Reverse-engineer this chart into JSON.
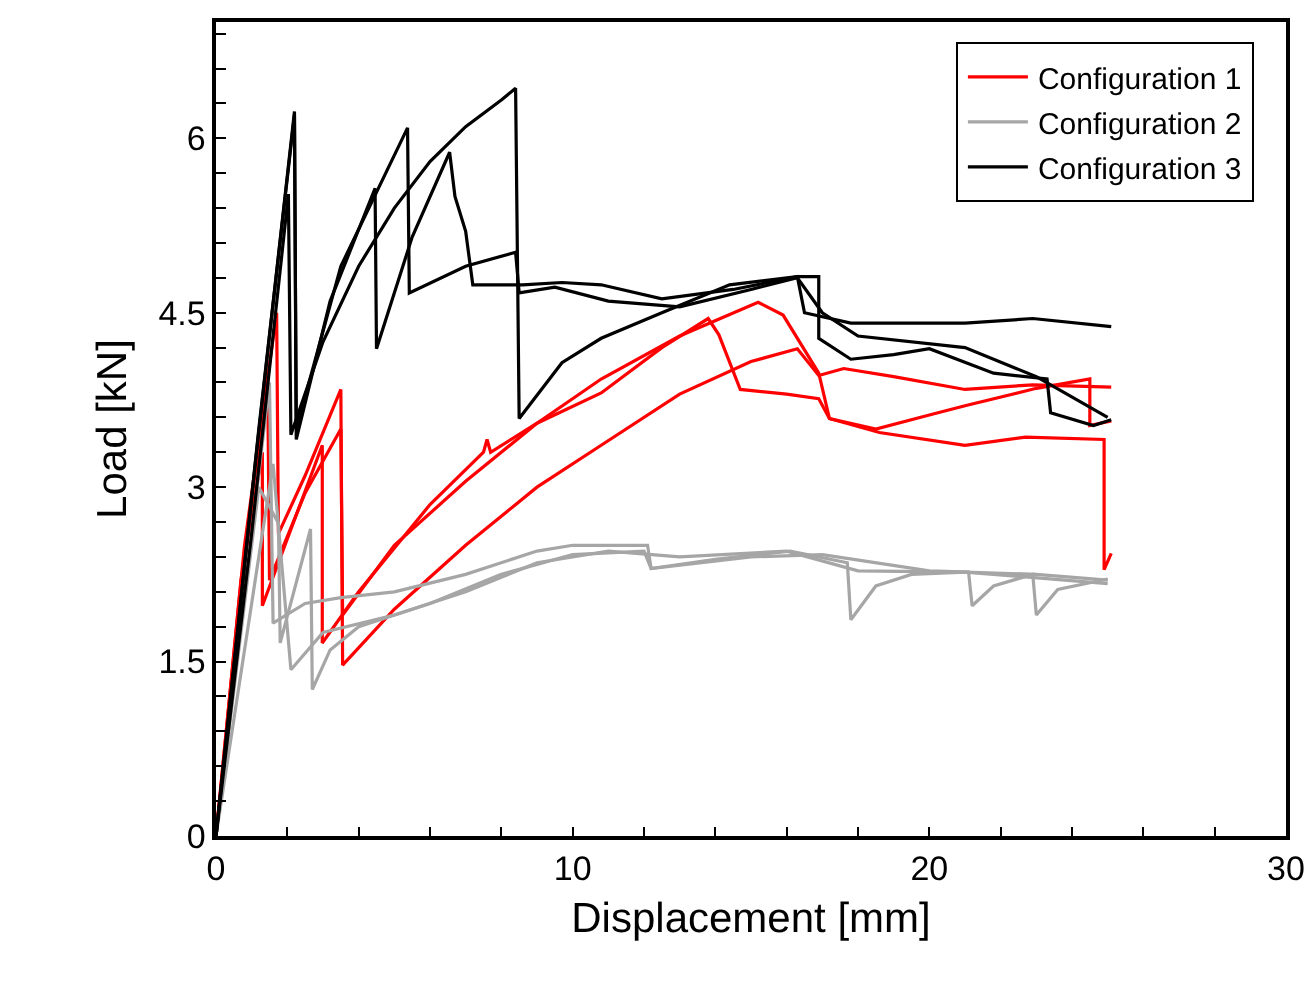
{
  "chart_data": {
    "type": "line",
    "xlabel": "Displacement [mm]",
    "ylabel": "Load [kN]",
    "xlim": [
      0,
      30
    ],
    "ylim": [
      0,
      7
    ],
    "xticks": [
      0,
      {
        "value": 2,
        "label": null
      },
      {
        "value": 4,
        "label": null
      },
      {
        "value": 6,
        "label": null
      },
      {
        "value": 8,
        "label": null
      },
      10,
      {
        "value": 12,
        "label": null
      },
      {
        "value": 14,
        "label": null
      },
      {
        "value": 16,
        "label": null
      },
      {
        "value": 18,
        "label": null
      },
      20,
      {
        "value": 22,
        "label": null
      },
      {
        "value": 24,
        "label": null
      },
      {
        "value": 26,
        "label": null
      },
      {
        "value": 28,
        "label": null
      },
      30
    ],
    "yticks": [
      0,
      {
        "value": 0.3,
        "label": null
      },
      {
        "value": 0.6,
        "label": null
      },
      {
        "value": 0.9,
        "label": null
      },
      {
        "value": 1.2,
        "label": null
      },
      1.5,
      {
        "value": 1.8,
        "label": null
      },
      {
        "value": 2.1,
        "label": null
      },
      {
        "value": 2.4,
        "label": null
      },
      {
        "value": 2.7,
        "label": null
      },
      3,
      {
        "value": 3.3,
        "label": null
      },
      {
        "value": 3.6,
        "label": null
      },
      {
        "value": 3.9,
        "label": null
      },
      {
        "value": 4.2,
        "label": null
      },
      4.5,
      {
        "value": 4.8,
        "label": null
      },
      {
        "value": 5.1,
        "label": null
      },
      {
        "value": 5.4,
        "label": null
      },
      {
        "value": 5.7,
        "label": null
      },
      6,
      {
        "value": 6.3,
        "label": null
      },
      {
        "value": 6.6,
        "label": null
      },
      {
        "value": 6.9,
        "label": null
      }
    ],
    "grid": false,
    "legend": "top right",
    "marker": "none",
    "line_style": "solid",
    "series": [
      {
        "name": "Configuration 1",
        "color": "#ff0000",
        "x": [
          0,
          0.8,
          1.7,
          1.75,
          2.5,
          3.5,
          3.55,
          5,
          7,
          9,
          10.8,
          13,
          15,
          16.3,
          16.9,
          17.6,
          19,
          21,
          22.9,
          25.1
        ],
        "values": [
          0,
          2.5,
          4.5,
          2.6,
          3.1,
          3.84,
          1.47,
          1.95,
          2.5,
          3.0,
          3.36,
          3.8,
          4.08,
          4.19,
          3.96,
          4.02,
          3.95,
          3.84,
          3.88,
          3.86
        ]
      },
      {
        "color": "#ff0000",
        "x": [
          0,
          0.7,
          1.3,
          1.3,
          2.98,
          2.98,
          4,
          6,
          7.5,
          7.6,
          7.7,
          9,
          10.8,
          12.5,
          13.8,
          14.1,
          14.7,
          16,
          16.9,
          17.2,
          18.5,
          20,
          21,
          23,
          24.5,
          24.5,
          25.1
        ],
        "values": [
          0,
          2.2,
          3.3,
          1.98,
          3.36,
          1.66,
          2.1,
          2.85,
          3.3,
          3.41,
          3.3,
          3.55,
          3.81,
          4.2,
          4.45,
          4.31,
          3.84,
          3.8,
          3.76,
          3.59,
          3.5,
          3.62,
          3.7,
          3.85,
          3.93,
          3.53,
          3.57
        ]
      },
      {
        "color": "#ff0000",
        "x": [
          0,
          1,
          1.45,
          1.5,
          2.5,
          3.5,
          3.55,
          5,
          7,
          9,
          10.8,
          13,
          15.2,
          15.9,
          16.9,
          17.2,
          18.6,
          21,
          22.7,
          24.9,
          24.9,
          25.1
        ],
        "values": [
          0,
          2.9,
          3.9,
          2.2,
          2.95,
          3.5,
          1.9,
          2.5,
          3.05,
          3.55,
          3.93,
          4.3,
          4.59,
          4.48,
          3.98,
          3.59,
          3.47,
          3.36,
          3.43,
          3.41,
          2.29,
          2.43
        ]
      },
      {
        "name": "Configuration 2",
        "color": "#a6a6a6",
        "x": [
          0,
          1.5,
          1.6,
          2.5,
          3.5,
          5,
          7,
          9,
          10,
          12.1,
          12.2,
          14,
          16.1,
          17.7,
          17.8,
          18.5,
          19.5,
          21,
          23,
          25
        ],
        "values": [
          0,
          3.9,
          1.83,
          2.0,
          2.05,
          2.1,
          2.25,
          2.45,
          2.5,
          2.5,
          2.3,
          2.38,
          2.45,
          2.35,
          1.86,
          2.15,
          2.25,
          2.27,
          2.25,
          2.2
        ]
      },
      {
        "color": "#a6a6a6",
        "x": [
          0,
          1.2,
          1.75,
          1.8,
          2.65,
          2.7,
          3.2,
          4,
          6,
          8,
          10,
          12,
          12.2,
          15,
          17,
          20,
          21.1,
          21.2,
          21.8,
          22.9,
          23,
          23.6,
          25
        ],
        "values": [
          0,
          3.0,
          2.69,
          1.66,
          2.64,
          1.26,
          1.6,
          1.8,
          2.0,
          2.25,
          2.42,
          2.45,
          2.3,
          2.4,
          2.42,
          2.28,
          2.27,
          1.98,
          2.15,
          2.25,
          1.9,
          2.12,
          2.21
        ]
      },
      {
        "color": "#a6a6a6",
        "x": [
          0,
          1.6,
          2.1,
          3,
          5,
          7,
          9,
          11,
          13,
          16,
          18,
          21,
          25
        ],
        "values": [
          0,
          3.2,
          1.43,
          1.75,
          1.9,
          2.1,
          2.35,
          2.45,
          2.4,
          2.45,
          2.28,
          2.27,
          2.17
        ]
      },
      {
        "name": "Configuration 3",
        "color": "#000000",
        "x": [
          0,
          1,
          2.03,
          2.1,
          3,
          4,
          5,
          6,
          7,
          8,
          8.4,
          8.5,
          9.7,
          10.8,
          12.5,
          14.4,
          16.3,
          16.9,
          16.9,
          17.8,
          19,
          20,
          21.8,
          23.3,
          23.4,
          24.6,
          25.1
        ],
        "values": [
          0,
          2.6,
          5.52,
          3.45,
          4.25,
          4.9,
          5.4,
          5.8,
          6.1,
          6.33,
          6.43,
          3.59,
          4.07,
          4.28,
          4.5,
          4.74,
          4.81,
          4.81,
          4.28,
          4.1,
          4.14,
          4.19,
          3.98,
          3.93,
          3.64,
          3.53,
          3.58
        ]
      },
      {
        "color": "#000000",
        "x": [
          0,
          1.1,
          2.2,
          2.25,
          3.2,
          4.46,
          4.5,
          5.5,
          6.55,
          6.7,
          7,
          7.2,
          8.6,
          9.7,
          10.8,
          12.5,
          14.5,
          16.3,
          16.5,
          17.8,
          21,
          22.9,
          25.1
        ],
        "values": [
          0,
          3.2,
          6.23,
          3.41,
          4.6,
          5.57,
          4.19,
          5.15,
          5.88,
          5.5,
          5.2,
          4.74,
          4.74,
          4.76,
          4.74,
          4.62,
          4.7,
          4.81,
          4.5,
          4.41,
          4.41,
          4.45,
          4.38
        ]
      },
      {
        "color": "#000000",
        "x": [
          0,
          1.2,
          2.2,
          2.25,
          3.5,
          5.37,
          5.42,
          7,
          8.4,
          8.5,
          9.5,
          11,
          13,
          15,
          16.3,
          17,
          18,
          21,
          23,
          25
        ],
        "values": [
          0,
          3.5,
          6.2,
          3.5,
          4.9,
          6.09,
          4.67,
          4.9,
          5.02,
          4.67,
          4.72,
          4.6,
          4.55,
          4.7,
          4.8,
          4.5,
          4.3,
          4.2,
          3.95,
          3.6
        ]
      }
    ]
  }
}
